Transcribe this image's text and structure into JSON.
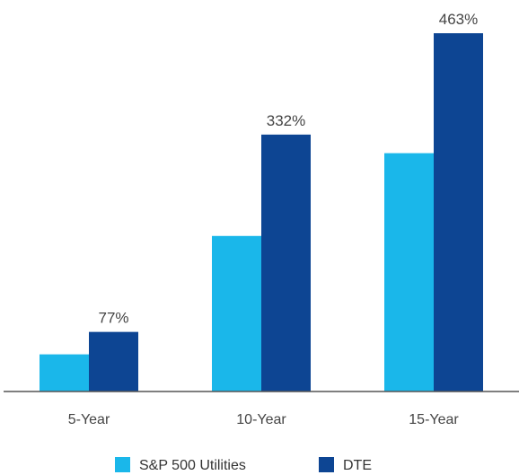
{
  "chart_data": {
    "type": "bar",
    "categories": [
      "5-Year",
      "10-Year",
      "15-Year"
    ],
    "series": [
      {
        "name": "S&P 500 Utilities",
        "values": [
          48,
          201,
          308
        ],
        "color": "#1ab7ea"
      },
      {
        "name": "DTE",
        "values": [
          77,
          332,
          463
        ],
        "color": "#0d4593"
      }
    ],
    "data_labels": [
      "77%",
      "332%",
      "463%"
    ],
    "ylim": [
      0,
      463
    ],
    "grid": false,
    "legend": "bottom-center"
  }
}
